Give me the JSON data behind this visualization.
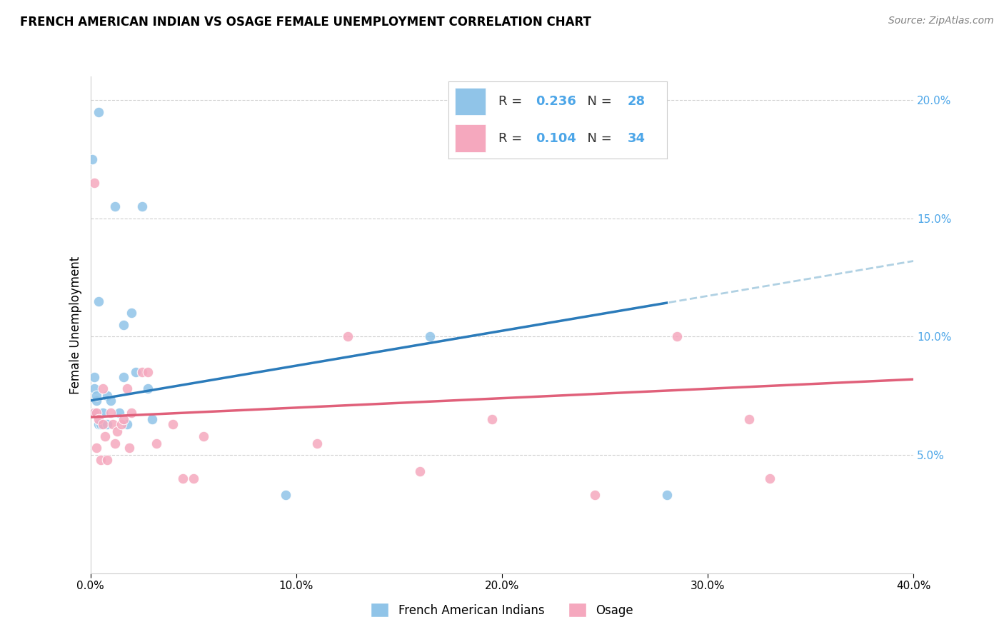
{
  "title": "FRENCH AMERICAN INDIAN VS OSAGE FEMALE UNEMPLOYMENT CORRELATION CHART",
  "source": "Source: ZipAtlas.com",
  "ylabel": "Female Unemployment",
  "xlim": [
    0,
    0.4
  ],
  "ylim": [
    0,
    0.21
  ],
  "blue_R": 0.236,
  "blue_N": 28,
  "pink_R": 0.104,
  "pink_N": 34,
  "blue_color": "#90c4e8",
  "pink_color": "#f5a8be",
  "blue_line_color": "#2b7bba",
  "pink_line_color": "#e0607a",
  "dashed_color": "#a8cce0",
  "blue_scatter_x": [
    0.004,
    0.001,
    0.012,
    0.025,
    0.004,
    0.016,
    0.02,
    0.022,
    0.002,
    0.002,
    0.003,
    0.002,
    0.002,
    0.003,
    0.004,
    0.005,
    0.008,
    0.006,
    0.008,
    0.01,
    0.014,
    0.016,
    0.018,
    0.028,
    0.03,
    0.095,
    0.165,
    0.28
  ],
  "blue_scatter_y": [
    0.195,
    0.175,
    0.155,
    0.155,
    0.115,
    0.105,
    0.11,
    0.085,
    0.083,
    0.078,
    0.073,
    0.068,
    0.068,
    0.075,
    0.063,
    0.063,
    0.063,
    0.068,
    0.075,
    0.073,
    0.068,
    0.083,
    0.063,
    0.078,
    0.065,
    0.033,
    0.1,
    0.033
  ],
  "pink_scatter_x": [
    0.002,
    0.002,
    0.003,
    0.003,
    0.004,
    0.005,
    0.006,
    0.006,
    0.007,
    0.008,
    0.01,
    0.011,
    0.012,
    0.013,
    0.015,
    0.016,
    0.018,
    0.019,
    0.02,
    0.025,
    0.028,
    0.032,
    0.04,
    0.045,
    0.05,
    0.055,
    0.11,
    0.125,
    0.16,
    0.195,
    0.245,
    0.285,
    0.32,
    0.33
  ],
  "pink_scatter_y": [
    0.165,
    0.068,
    0.068,
    0.053,
    0.065,
    0.048,
    0.063,
    0.078,
    0.058,
    0.048,
    0.068,
    0.063,
    0.055,
    0.06,
    0.063,
    0.065,
    0.078,
    0.053,
    0.068,
    0.085,
    0.085,
    0.055,
    0.063,
    0.04,
    0.04,
    0.058,
    0.055,
    0.1,
    0.043,
    0.065,
    0.033,
    0.1,
    0.065,
    0.04
  ],
  "legend_labels": [
    "French American Indians",
    "Osage"
  ],
  "background_color": "#ffffff",
  "grid_color": "#d0d0d0",
  "text_color": "#333333",
  "accent_color": "#4da6e8"
}
